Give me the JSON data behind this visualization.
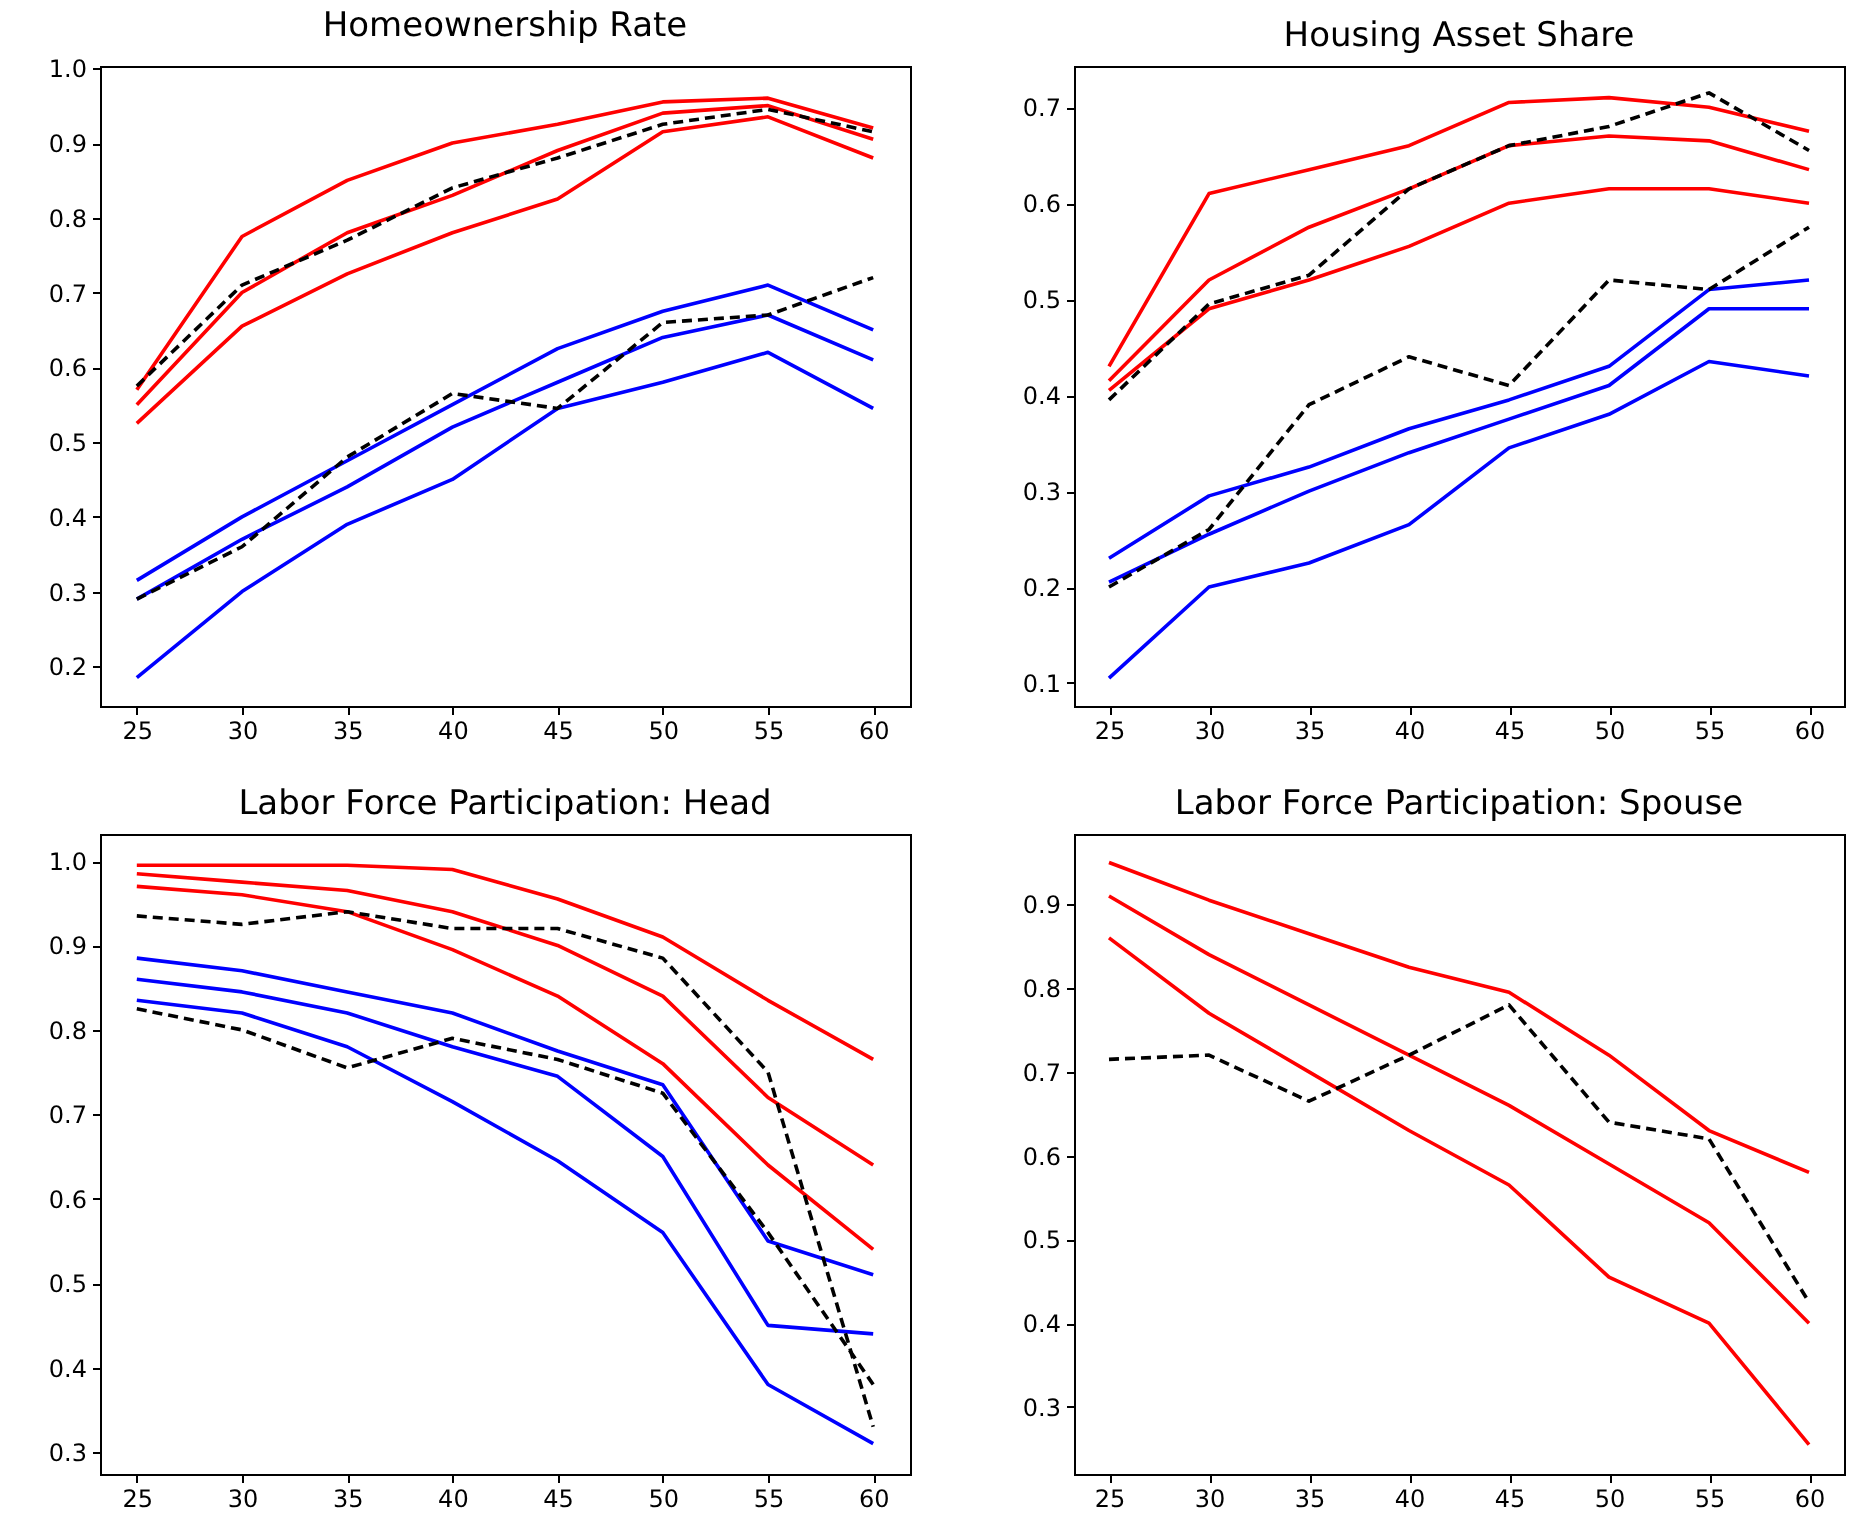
{
  "chart_data": [
    {
      "type": "line",
      "title": "Homeownership Rate",
      "x": [
        25,
        30,
        35,
        40,
        45,
        50,
        55,
        60
      ],
      "xlim": [
        23.25,
        61.75
      ],
      "xticks": [
        25,
        30,
        35,
        40,
        45,
        50,
        55,
        60
      ],
      "ylim": [
        0.147,
        1.003
      ],
      "yticks": [
        0.2,
        0.3,
        0.4,
        0.5,
        0.6,
        0.7,
        0.8,
        0.9,
        {
          "value": 1,
          "label": "1.0"
        }
      ],
      "grid": false,
      "legend": false,
      "marker": "none",
      "series": [
        {
          "color": "#ff0000",
          "line_style": "solid",
          "values": [
            0.57,
            0.775,
            0.85,
            0.9,
            0.925,
            0.955,
            0.96,
            0.92
          ]
        },
        {
          "color": "#ff0000",
          "line_style": "solid",
          "values": [
            0.55,
            0.7,
            0.78,
            0.83,
            0.89,
            0.94,
            0.95,
            0.905
          ]
        },
        {
          "color": "#ff0000",
          "line_style": "solid",
          "values": [
            0.525,
            0.655,
            0.725,
            0.78,
            0.825,
            0.915,
            0.935,
            0.88
          ]
        },
        {
          "color": "#0000ff",
          "line_style": "solid",
          "values": [
            0.315,
            0.4,
            0.475,
            0.55,
            0.625,
            0.675,
            0.71,
            0.65
          ]
        },
        {
          "color": "#0000ff",
          "line_style": "solid",
          "values": [
            0.29,
            0.37,
            0.44,
            0.52,
            0.58,
            0.64,
            0.67,
            0.61
          ]
        },
        {
          "color": "#0000ff",
          "line_style": "solid",
          "values": [
            0.185,
            0.3,
            0.39,
            0.45,
            0.545,
            0.58,
            0.62,
            0.545
          ]
        },
        {
          "color": "#000000",
          "line_style": "dashed",
          "values": [
            0.575,
            0.71,
            0.77,
            0.84,
            0.88,
            0.925,
            0.945,
            0.915
          ]
        },
        {
          "color": "#000000",
          "line_style": "dashed",
          "values": [
            0.29,
            0.36,
            0.48,
            0.565,
            0.545,
            0.66,
            0.67,
            0.72
          ]
        }
      ]
    },
    {
      "type": "line",
      "title": "Housing Asset Share",
      "x": [
        25,
        30,
        35,
        40,
        45,
        50,
        55,
        60
      ],
      "xlim": [
        23.25,
        61.75
      ],
      "xticks": [
        25,
        30,
        35,
        40,
        45,
        50,
        55,
        60
      ],
      "ylim": [
        0.076,
        0.743
      ],
      "yticks": [
        0.1,
        0.2,
        0.3,
        0.4,
        0.5,
        0.6,
        0.7
      ],
      "grid": false,
      "legend": false,
      "marker": "none",
      "series": [
        {
          "color": "#ff0000",
          "line_style": "solid",
          "values": [
            0.43,
            0.61,
            0.635,
            0.66,
            0.705,
            0.71,
            0.7,
            0.675
          ]
        },
        {
          "color": "#ff0000",
          "line_style": "solid",
          "values": [
            0.415,
            0.52,
            0.575,
            0.615,
            0.66,
            0.67,
            0.665,
            0.635
          ]
        },
        {
          "color": "#ff0000",
          "line_style": "solid",
          "values": [
            0.405,
            0.49,
            0.52,
            0.555,
            0.6,
            0.615,
            0.615,
            0.6
          ]
        },
        {
          "color": "#0000ff",
          "line_style": "solid",
          "values": [
            0.23,
            0.295,
            0.325,
            0.365,
            0.395,
            0.43,
            0.51,
            0.52
          ]
        },
        {
          "color": "#0000ff",
          "line_style": "solid",
          "values": [
            0.205,
            0.255,
            0.3,
            0.34,
            0.375,
            0.41,
            0.49,
            0.49
          ]
        },
        {
          "color": "#0000ff",
          "line_style": "solid",
          "values": [
            0.105,
            0.2,
            0.225,
            0.265,
            0.345,
            0.38,
            0.435,
            0.42
          ]
        },
        {
          "color": "#000000",
          "line_style": "dashed",
          "values": [
            0.395,
            0.495,
            0.525,
            0.615,
            0.66,
            0.68,
            0.715,
            0.655
          ]
        },
        {
          "color": "#000000",
          "line_style": "dashed",
          "values": [
            0.2,
            0.26,
            0.39,
            0.44,
            0.41,
            0.52,
            0.51,
            0.575
          ]
        }
      ]
    },
    {
      "type": "line",
      "title": "Labor Force Participation: Head",
      "x": [
        25,
        30,
        35,
        40,
        45,
        50,
        55,
        60
      ],
      "xlim": [
        23.25,
        61.75
      ],
      "xticks": [
        25,
        30,
        35,
        40,
        45,
        50,
        55,
        60
      ],
      "ylim": [
        0.274,
        1.032
      ],
      "yticks": [
        0.3,
        0.4,
        0.5,
        0.6,
        0.7,
        0.8,
        0.9,
        {
          "value": 1,
          "label": "1.0"
        }
      ],
      "grid": false,
      "legend": false,
      "marker": "none",
      "series": [
        {
          "color": "#ff0000",
          "line_style": "solid",
          "values": [
            0.995,
            0.995,
            0.995,
            0.99,
            0.955,
            0.91,
            0.835,
            0.765
          ]
        },
        {
          "color": "#ff0000",
          "line_style": "solid",
          "values": [
            0.985,
            0.975,
            0.965,
            0.94,
            0.9,
            0.84,
            0.72,
            0.64
          ]
        },
        {
          "color": "#ff0000",
          "line_style": "solid",
          "values": [
            0.97,
            0.96,
            0.94,
            0.895,
            0.84,
            0.76,
            0.64,
            0.54
          ]
        },
        {
          "color": "#0000ff",
          "line_style": "solid",
          "values": [
            0.885,
            0.87,
            0.845,
            0.82,
            0.775,
            0.735,
            0.55,
            0.51
          ]
        },
        {
          "color": "#0000ff",
          "line_style": "solid",
          "values": [
            0.86,
            0.845,
            0.82,
            0.78,
            0.745,
            0.65,
            0.45,
            0.44
          ]
        },
        {
          "color": "#0000ff",
          "line_style": "solid",
          "values": [
            0.835,
            0.82,
            0.78,
            0.715,
            0.645,
            0.56,
            0.38,
            0.31
          ]
        },
        {
          "color": "#000000",
          "line_style": "dashed",
          "values": [
            0.935,
            0.925,
            0.94,
            0.92,
            0.92,
            0.885,
            0.75,
            0.33
          ]
        },
        {
          "color": "#000000",
          "line_style": "dashed",
          "values": [
            0.825,
            0.8,
            0.755,
            0.79,
            0.765,
            0.725,
            0.56,
            0.38
          ]
        }
      ]
    },
    {
      "type": "line",
      "title": "Labor Force Participation: Spouse",
      "x": [
        25,
        30,
        35,
        40,
        45,
        50,
        55,
        60
      ],
      "xlim": [
        23.25,
        61.75
      ],
      "xticks": [
        25,
        30,
        35,
        40,
        45,
        50,
        55,
        60
      ],
      "ylim": [
        0.22,
        0.984
      ],
      "yticks": [
        0.3,
        0.4,
        0.5,
        0.6,
        0.7,
        0.8,
        0.9
      ],
      "grid": false,
      "legend": false,
      "marker": "none",
      "series": [
        {
          "color": "#ff0000",
          "line_style": "solid",
          "values": [
            0.95,
            0.905,
            0.865,
            0.825,
            0.795,
            0.72,
            0.63,
            0.58
          ]
        },
        {
          "color": "#ff0000",
          "line_style": "solid",
          "values": [
            0.91,
            0.84,
            0.78,
            0.72,
            0.66,
            0.59,
            0.52,
            0.4
          ]
        },
        {
          "color": "#ff0000",
          "line_style": "solid",
          "values": [
            0.86,
            0.77,
            0.7,
            0.63,
            0.565,
            0.455,
            0.4,
            0.255
          ]
        },
        {
          "color": "#000000",
          "line_style": "dashed",
          "values": [
            0.715,
            0.72,
            0.665,
            0.72,
            0.78,
            0.64,
            0.62,
            0.425
          ]
        }
      ]
    }
  ]
}
